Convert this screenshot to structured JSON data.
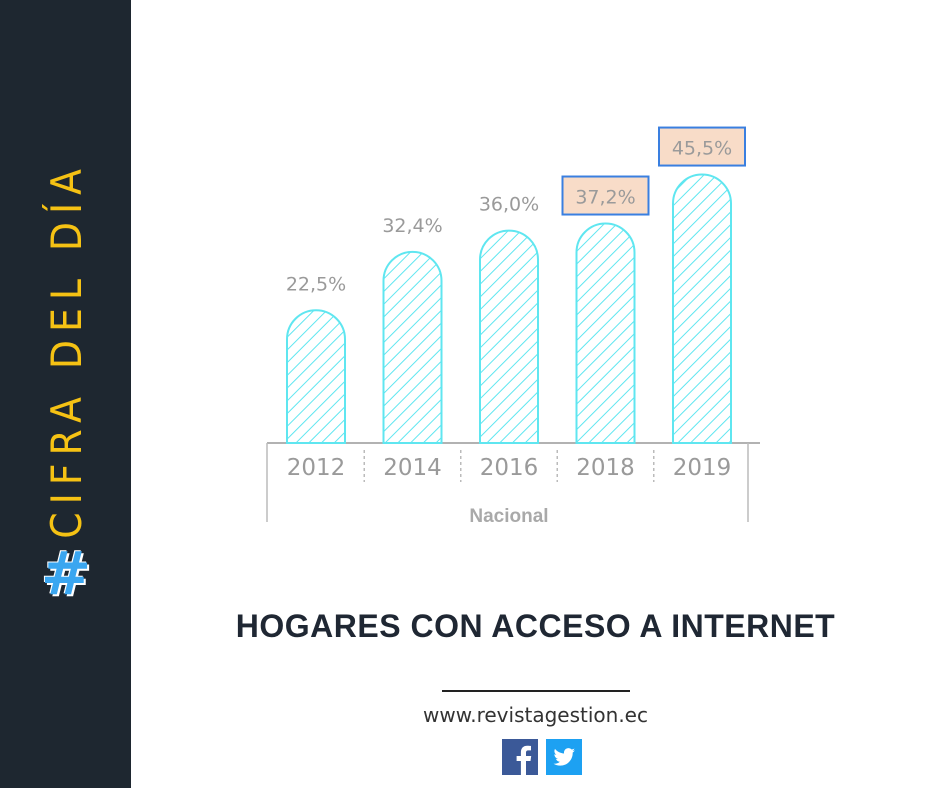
{
  "sidebar": {
    "hash": "#",
    "title": "CIFRA DEL DÍA"
  },
  "chart_data": {
    "type": "bar",
    "categories": [
      "2012",
      "2014",
      "2016",
      "2018",
      "2019"
    ],
    "values": [
      22.5,
      32.4,
      36.0,
      37.2,
      45.5
    ],
    "value_labels": [
      "22,5%",
      "32,4%",
      "36,0%",
      "37,2%",
      "45,5%"
    ],
    "highlighted": [
      "2018",
      "2019"
    ],
    "group_label": "Nacional",
    "ylim": [
      0,
      50
    ],
    "colors": {
      "bar": "#5fe6f0",
      "highlight_fill": "#f8dcc8",
      "highlight_border": "#3a7fe0"
    }
  },
  "title": "HOGARES CON ACCESO A INTERNET",
  "website": "www.revistagestion.ec",
  "social": [
    "facebook-icon",
    "twitter-icon"
  ]
}
